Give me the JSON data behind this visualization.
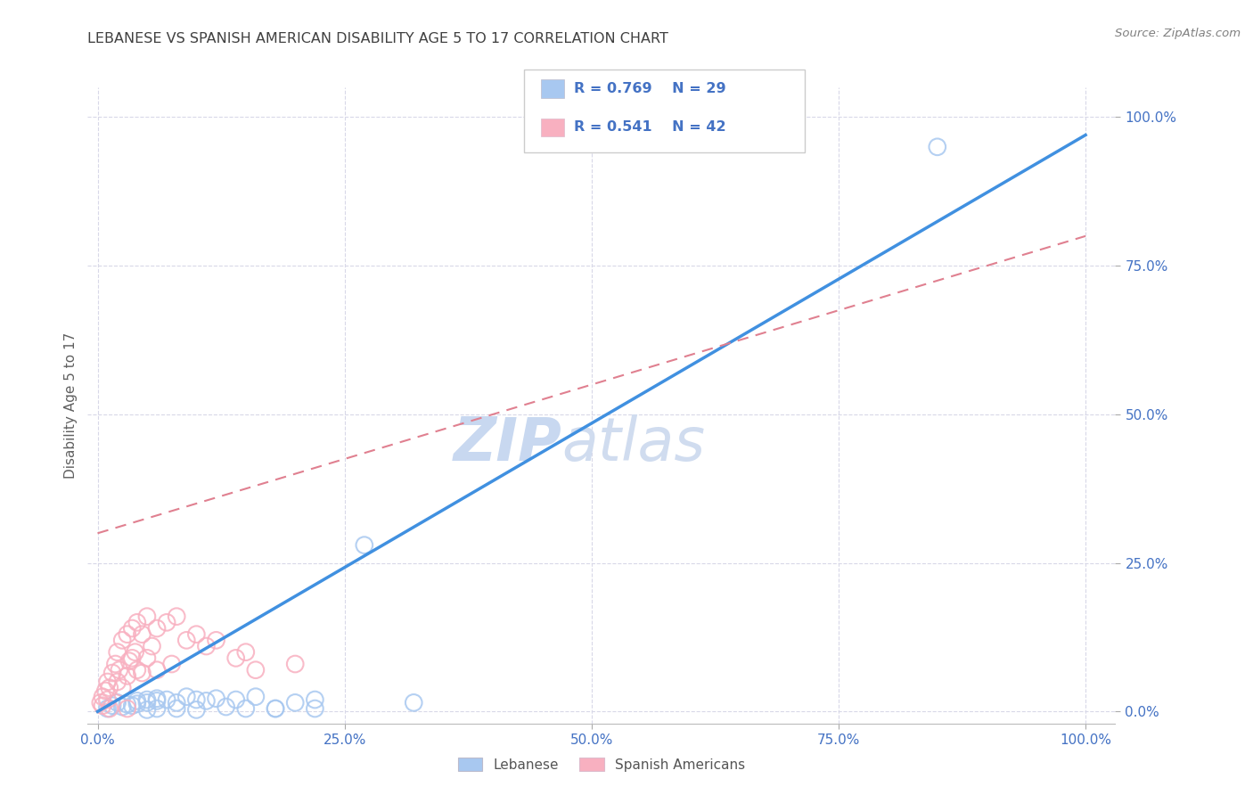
{
  "title": "LEBANESE VS SPANISH AMERICAN DISABILITY AGE 5 TO 17 CORRELATION CHART",
  "source": "Source: ZipAtlas.com",
  "ylabel": "Disability Age 5 to 17",
  "tick_labels": [
    "0.0%",
    "25.0%",
    "50.0%",
    "75.0%",
    "100.0%"
  ],
  "tick_positions": [
    0,
    25,
    50,
    75,
    100
  ],
  "xlim": [
    -1,
    103
  ],
  "ylim": [
    -2,
    105
  ],
  "legend_blue_label": "Lebanese",
  "legend_pink_label": "Spanish Americans",
  "legend_r_blue": "R = 0.769",
  "legend_n_blue": "N = 29",
  "legend_r_pink": "R = 0.541",
  "legend_n_pink": "N = 42",
  "blue_scatter_color": "#A8C8F0",
  "pink_scatter_color": "#F8B0C0",
  "blue_line_color": "#4090E0",
  "pink_line_color": "#E08090",
  "legend_text_color": "#4472C4",
  "title_color": "#404040",
  "source_color": "#808080",
  "watermark_color": "#C8D8F0",
  "grid_color": "#D8D8E8",
  "tick_color": "#4472C4",
  "ylabel_color": "#606060",
  "blue_line_x0": 0,
  "blue_line_y0": 0,
  "blue_line_x1": 100,
  "blue_line_y1": 97,
  "pink_line_x0": 0,
  "pink_line_y0": 30,
  "pink_line_x1": 100,
  "pink_line_y1": 80,
  "blue_x": [
    1,
    1.5,
    2,
    2.5,
    3,
    3.5,
    4,
    4,
    5,
    5,
    6,
    6,
    7,
    8,
    9,
    10,
    11,
    12,
    14,
    16,
    18,
    20,
    22,
    27,
    32,
    85
  ],
  "blue_y": [
    0.5,
    1.0,
    1.5,
    0.8,
    1.2,
    1.0,
    1.8,
    1.3,
    2.0,
    1.5,
    2.2,
    1.8,
    2.0,
    1.5,
    2.5,
    2.0,
    1.8,
    2.2,
    2.0,
    2.5,
    0.5,
    1.5,
    2.0,
    28,
    1.5,
    95
  ],
  "blue_extra_x": [
    5,
    6,
    8,
    10,
    13,
    15,
    18,
    22
  ],
  "blue_extra_y": [
    0.3,
    0.5,
    0.5,
    0.3,
    0.8,
    0.5,
    0.5,
    0.5
  ],
  "pink_x": [
    0.3,
    0.5,
    0.8,
    1.0,
    1.0,
    1.2,
    1.5,
    1.8,
    2.0,
    2.0,
    2.2,
    2.5,
    2.5,
    3.0,
    3.0,
    3.2,
    3.5,
    3.5,
    3.8,
    4.0,
    4.0,
    4.5,
    4.5,
    5.0,
    5.0,
    5.5,
    6.0,
    6.0,
    7.0,
    7.5,
    8.0,
    9.0,
    10.0,
    11.0,
    12.0,
    14.0,
    15.0,
    16.0,
    20.0,
    0.5,
    1.2,
    3.0
  ],
  "pink_y": [
    1.5,
    2.5,
    3.5,
    5.0,
    2.0,
    4.0,
    6.5,
    8.0,
    10.0,
    5.0,
    7.0,
    12.0,
    4.0,
    13.0,
    6.0,
    8.5,
    14.0,
    9.0,
    10.0,
    15.0,
    7.0,
    13.0,
    6.5,
    16.0,
    9.0,
    11.0,
    14.0,
    7.0,
    15.0,
    8.0,
    16.0,
    12.0,
    13.0,
    11.0,
    12.0,
    9.0,
    10.0,
    7.0,
    8.0,
    1.0,
    0.5,
    0.5
  ]
}
